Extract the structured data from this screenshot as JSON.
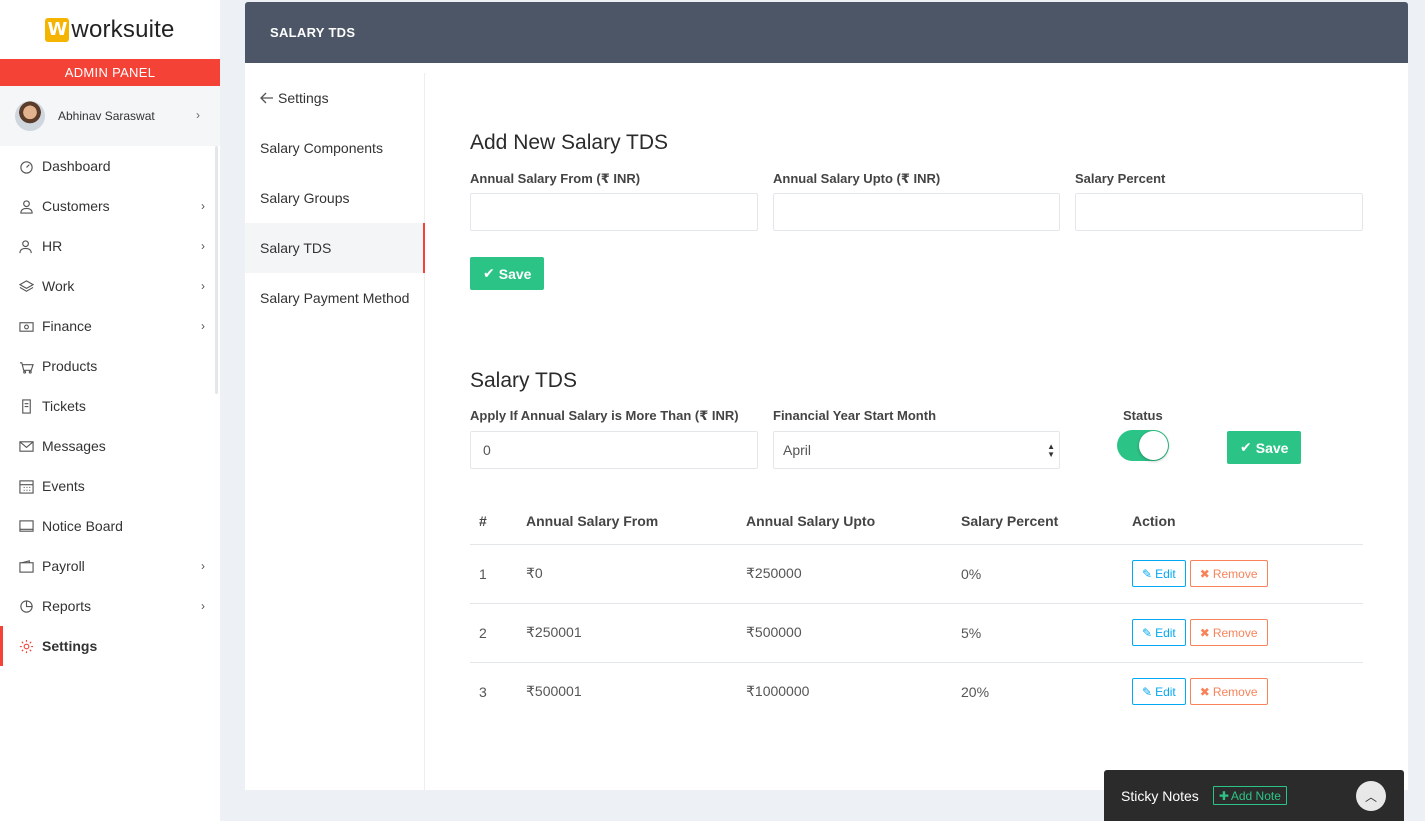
{
  "brand": {
    "logo_letter": "W",
    "name": "worksuite"
  },
  "admin_label": "ADMIN PANEL",
  "user": {
    "name": "Abhinav Saraswat"
  },
  "nav": [
    {
      "label": "Dashboard",
      "icon": "dashboard-icon",
      "has_children": false
    },
    {
      "label": "Customers",
      "icon": "user-icon",
      "has_children": true
    },
    {
      "label": "HR",
      "icon": "people-icon",
      "has_children": true
    },
    {
      "label": "Work",
      "icon": "layers-icon",
      "has_children": true
    },
    {
      "label": "Finance",
      "icon": "money-icon",
      "has_children": true
    },
    {
      "label": "Products",
      "icon": "basket-icon",
      "has_children": false
    },
    {
      "label": "Tickets",
      "icon": "ticket-icon",
      "has_children": false
    },
    {
      "label": "Messages",
      "icon": "envelope-icon",
      "has_children": false
    },
    {
      "label": "Events",
      "icon": "calendar-icon",
      "has_children": false
    },
    {
      "label": "Notice Board",
      "icon": "screen-icon",
      "has_children": false
    },
    {
      "label": "Payroll",
      "icon": "wallet-icon",
      "has_children": true
    },
    {
      "label": "Reports",
      "icon": "pie-chart-icon",
      "has_children": true
    },
    {
      "label": "Settings",
      "icon": "gear-icon",
      "has_children": false,
      "active": true
    }
  ],
  "page_title": "SALARY TDS",
  "subnav": {
    "back_label": "Settings",
    "items": [
      "Salary Components",
      "Salary Groups",
      "Salary TDS",
      "Salary Payment Method"
    ],
    "active": "Salary TDS"
  },
  "add_form": {
    "heading": "Add New Salary TDS",
    "from_label": "Annual Salary From (₹ INR)",
    "upto_label": "Annual Salary Upto (₹ INR)",
    "percent_label": "Salary Percent",
    "from_value": "",
    "upto_value": "",
    "percent_value": "",
    "save_label": "Save"
  },
  "tds_settings": {
    "heading": "Salary TDS",
    "apply_label": "Apply If Annual Salary is More Than (₹ INR)",
    "apply_value": "0",
    "month_label": "Financial Year Start Month",
    "month_value": "April",
    "status_label": "Status",
    "status_on": true,
    "save_label": "Save"
  },
  "table": {
    "headers": [
      "#",
      "Annual Salary From",
      "Annual Salary Upto",
      "Salary Percent",
      "Action"
    ],
    "rows": [
      {
        "n": "1",
        "from": "₹0",
        "upto": "₹250000",
        "percent": "0%"
      },
      {
        "n": "2",
        "from": "₹250001",
        "upto": "₹500000",
        "percent": "5%"
      },
      {
        "n": "3",
        "from": "₹500001",
        "upto": "₹1000000",
        "percent": "20%"
      }
    ],
    "edit_label": "Edit",
    "remove_label": "Remove"
  },
  "sticky_notes": {
    "title": "Sticky Notes",
    "add_label": "Add Note"
  },
  "colors": {
    "accent": "#f44336",
    "success": "#2cc486",
    "header": "#4c5667",
    "info": "#03a9f3",
    "danger": "#f8835b"
  }
}
